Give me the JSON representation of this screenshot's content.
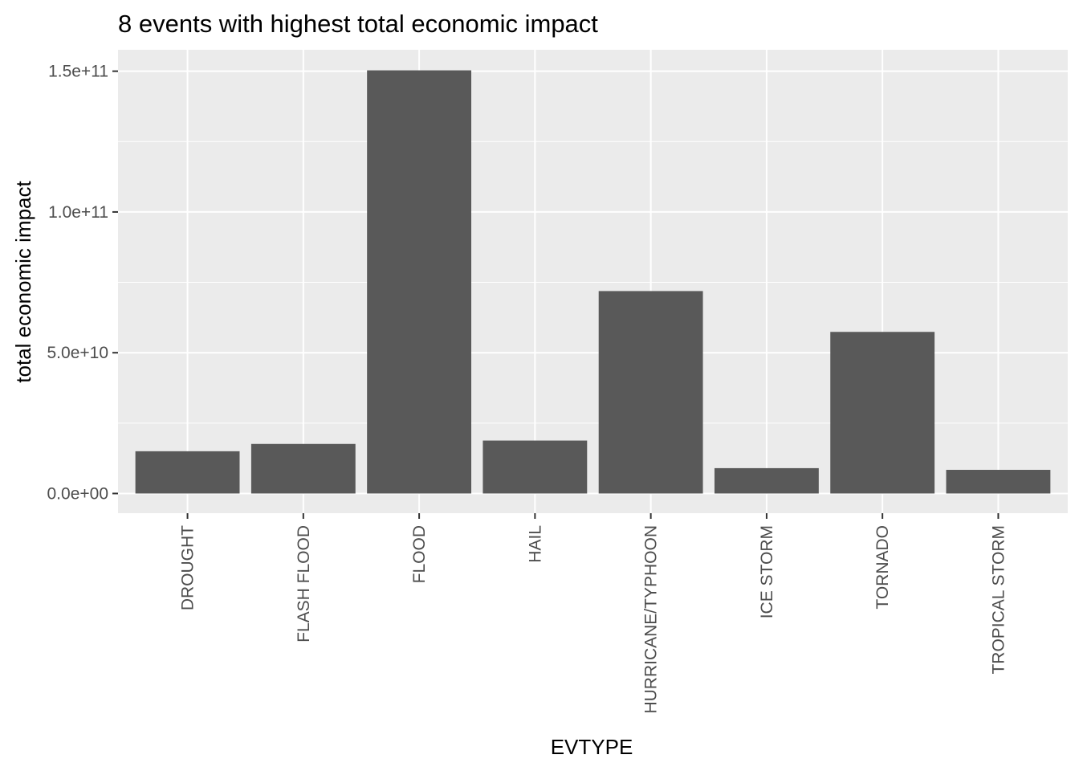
{
  "chart_data": {
    "type": "bar",
    "title": "8 events with highest total economic impact",
    "xlabel": "EVTYPE",
    "ylabel": "total economic impact",
    "categories": [
      "DROUGHT",
      "FLASH FLOOD",
      "FLOOD",
      "HAIL",
      "HURRICANE/TYPHOON",
      "ICE STORM",
      "TORNADO",
      "TROPICAL STORM"
    ],
    "values": [
      15000000000,
      17600000000,
      150300000000,
      18800000000,
      71900000000,
      9000000000,
      57400000000,
      8400000000
    ],
    "ylim": [
      -7000000000,
      157600000000
    ],
    "yticks": [
      0,
      50000000000,
      100000000000,
      150000000000
    ],
    "ytick_labels": [
      "0.0e+00",
      "5.0e+10",
      "1.0e+11",
      "1.5e+11"
    ],
    "grid": true,
    "legend": "none",
    "colors": {
      "panel": "#ebebeb",
      "grid": "#ffffff",
      "bar": "#595959",
      "tick_text": "#4d4d4d",
      "tick_mark": "#333333"
    }
  }
}
